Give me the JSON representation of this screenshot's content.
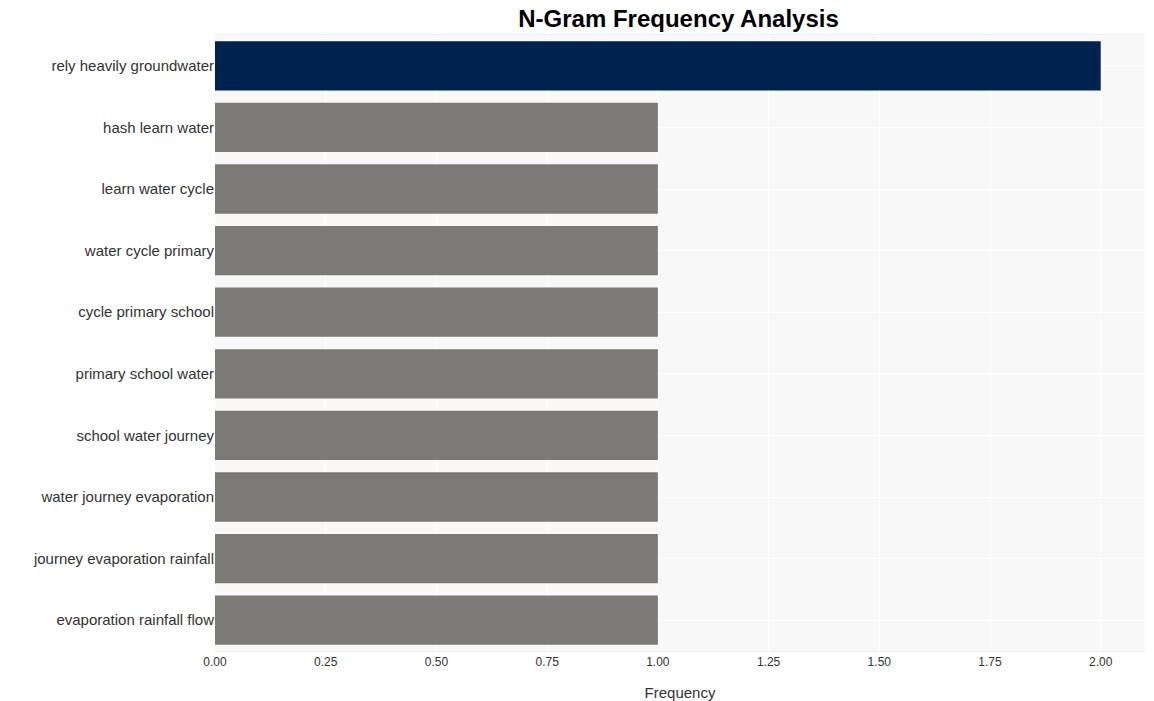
{
  "chart_data": {
    "type": "bar",
    "orientation": "horizontal",
    "title": "N-Gram Frequency Analysis",
    "x_label": "Frequency",
    "categories": [
      "rely heavily groundwater",
      "hash learn water",
      "learn water cycle",
      "water cycle primary",
      "cycle primary school",
      "primary school water",
      "school water journey",
      "water journey evaporation",
      "journey evaporation rainfall",
      "evaporation rainfall flow"
    ],
    "values": [
      2,
      1,
      1,
      1,
      1,
      1,
      1,
      1,
      1,
      1
    ],
    "colors": [
      "#00224e",
      "#7b7a76",
      "#7b7a76",
      "#7b7a76",
      "#7b7a76",
      "#7b7a76",
      "#7b7a76",
      "#7b7a76",
      "#7b7a76",
      "#7b7a76"
    ],
    "xlim": [
      0,
      2.1
    ],
    "xticks": [
      {
        "value": 0,
        "label": "0.00"
      },
      {
        "value": 0.25,
        "label": "0.25"
      },
      {
        "value": 0.5,
        "label": "0.50"
      },
      {
        "value": 0.75,
        "label": "0.75"
      },
      {
        "value": 1,
        "label": "1.00"
      },
      {
        "value": 1.25,
        "label": "1.25"
      },
      {
        "value": 1.5,
        "label": "1.50"
      },
      {
        "value": 1.75,
        "label": "1.75"
      },
      {
        "value": 2,
        "label": "2.00"
      }
    ],
    "grid": true
  }
}
